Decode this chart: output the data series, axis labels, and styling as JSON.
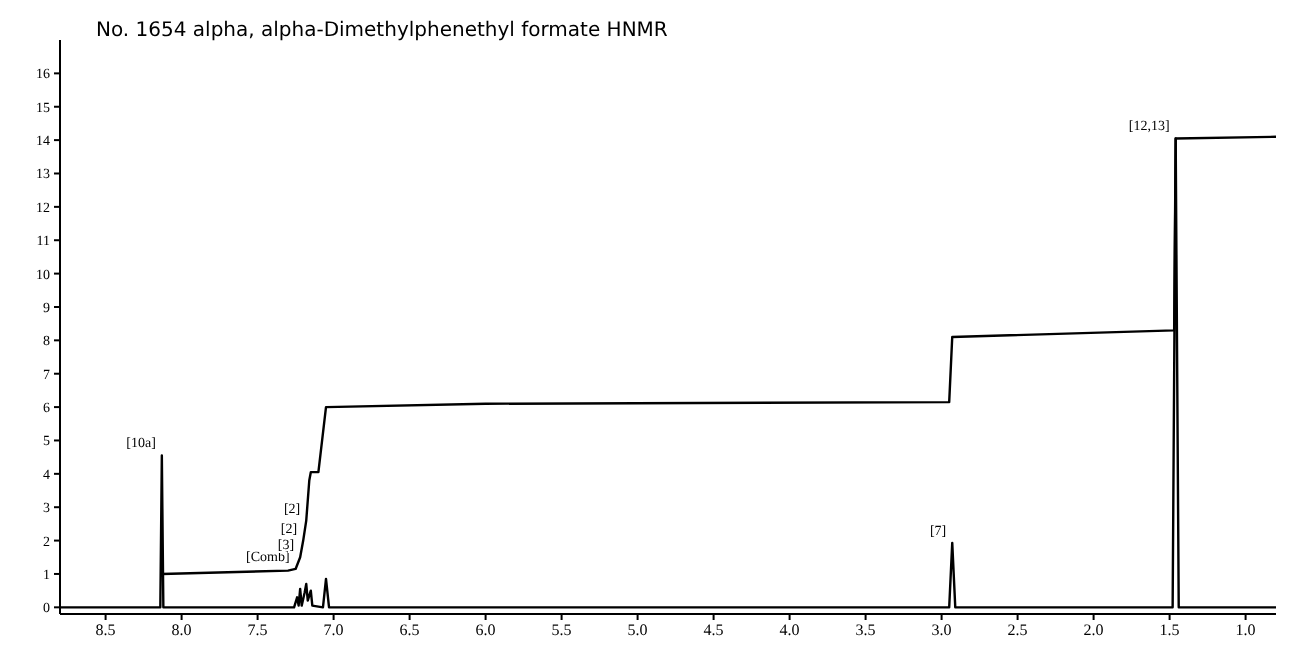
{
  "chart_data": {
    "type": "line",
    "title": "No. 1654 alpha, alpha-Dimethylphenethyl formate HNMR",
    "xlim": [
      8.8,
      0.8
    ],
    "xticks": [
      {
        "value": 8.5,
        "label": "8.5"
      },
      {
        "value": 8.0,
        "label": "8.0"
      },
      {
        "value": 7.5,
        "label": "7.5"
      },
      {
        "value": 7.0,
        "label": "7.0"
      },
      {
        "value": 6.5,
        "label": "6.5"
      },
      {
        "value": 6.0,
        "label": "6.0"
      },
      {
        "value": 5.5,
        "label": "5.5"
      },
      {
        "value": 5.0,
        "label": "5.0"
      },
      {
        "value": 4.5,
        "label": "4.5"
      },
      {
        "value": 4.0,
        "label": "4.0"
      },
      {
        "value": 3.5,
        "label": "3.5"
      },
      {
        "value": 3.0,
        "label": "3.0"
      },
      {
        "value": 2.5,
        "label": "2.5"
      },
      {
        "value": 2.0,
        "label": "2.0"
      },
      {
        "value": 1.5,
        "label": "1.5"
      },
      {
        "value": 1.0,
        "label": "1.0"
      }
    ],
    "ylim": [
      -0.2,
      17
    ],
    "yticks": [
      0,
      1,
      2,
      3,
      4,
      5,
      6,
      7,
      8,
      9,
      10,
      11,
      12,
      13,
      14,
      15,
      16
    ],
    "grid": false,
    "legend": false,
    "marker": "none",
    "line_style": "solid",
    "series": [
      {
        "color": "#000000",
        "x": [
          8.8,
          8.14,
          8.13,
          8.12,
          7.26,
          7.24,
          7.23,
          7.22,
          7.21,
          7.19,
          7.18,
          7.17,
          7.15,
          7.14,
          7.07,
          7.05,
          7.03,
          2.95,
          2.93,
          2.91,
          1.48,
          1.46,
          1.44,
          0.8
        ],
        "values": [
          0,
          0,
          4.55,
          0,
          0,
          0.3,
          0.05,
          0.55,
          0.05,
          0.45,
          0.7,
          0.2,
          0.5,
          0.05,
          0,
          0.85,
          0,
          0,
          1.93,
          0,
          0,
          14.05,
          0,
          0
        ]
      },
      {
        "color": "#000000",
        "x": [
          8.13,
          7.3,
          7.25,
          7.22,
          7.2,
          7.18,
          7.16,
          7.15,
          7.1,
          7.05,
          6.0,
          2.95,
          2.93,
          1.47,
          1.46,
          0.8
        ],
        "values": [
          1.0,
          1.1,
          1.15,
          1.5,
          2.0,
          2.6,
          3.8,
          4.05,
          4.05,
          6.0,
          6.1,
          6.15,
          8.1,
          8.3,
          14.05,
          14.1
        ]
      }
    ],
    "annotations": [
      {
        "text": "[10a]",
        "x": 8.13,
        "y": 4.55
      },
      {
        "text": "[Comb]",
        "x": 7.25,
        "y": 1.15
      },
      {
        "text": "[3]",
        "x": 7.22,
        "y": 1.5
      },
      {
        "text": "[2]",
        "x": 7.2,
        "y": 2.0
      },
      {
        "text": "[2]",
        "x": 7.18,
        "y": 2.6
      },
      {
        "text": "[7]",
        "x": 2.93,
        "y": 1.93
      },
      {
        "text": "[12,13]",
        "x": 1.46,
        "y": 14.05
      }
    ]
  }
}
